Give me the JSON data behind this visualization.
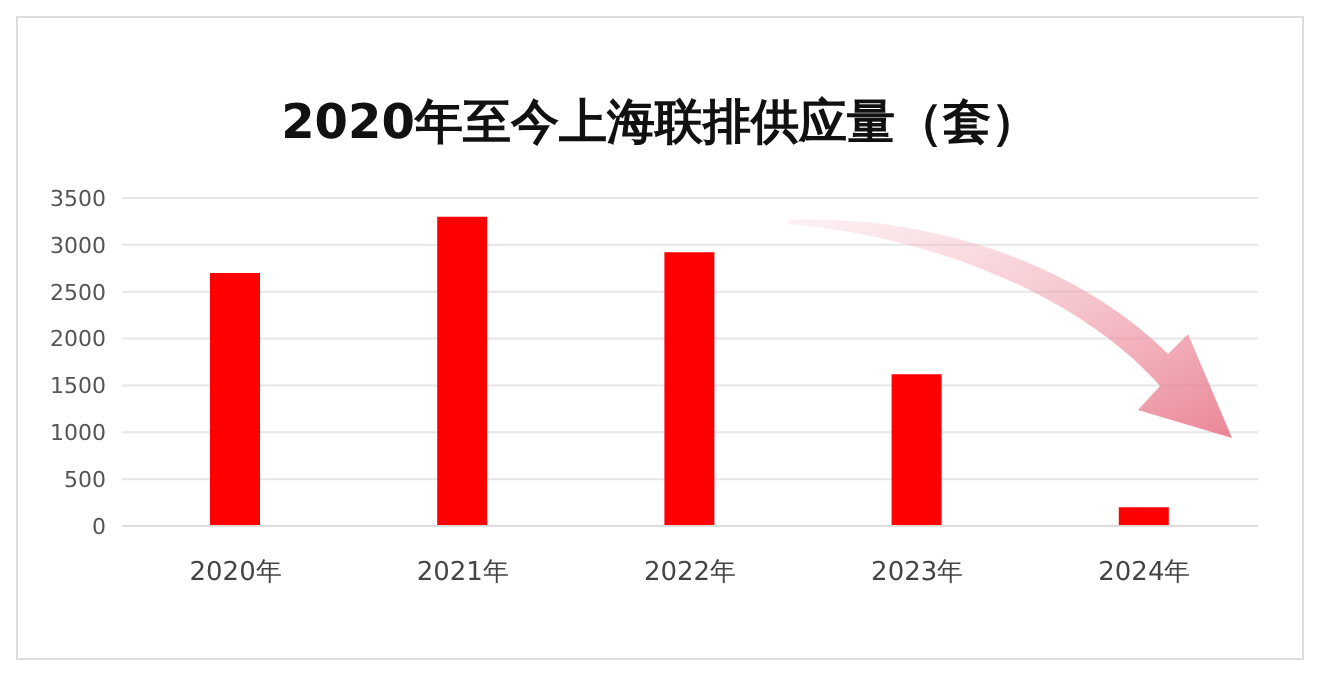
{
  "chart_data": {
    "type": "bar",
    "title": "2020年至今上海联排供应量（套）",
    "categories": [
      "2020年",
      "2021年",
      "2022年",
      "2023年",
      "2024年"
    ],
    "values": [
      2700,
      3300,
      2920,
      1620,
      200
    ],
    "color": "#ff0000",
    "ylim": [
      0,
      3500
    ],
    "yticks": [
      0,
      500,
      1000,
      1500,
      2000,
      2500,
      3000,
      3500
    ],
    "grid": "y"
  }
}
